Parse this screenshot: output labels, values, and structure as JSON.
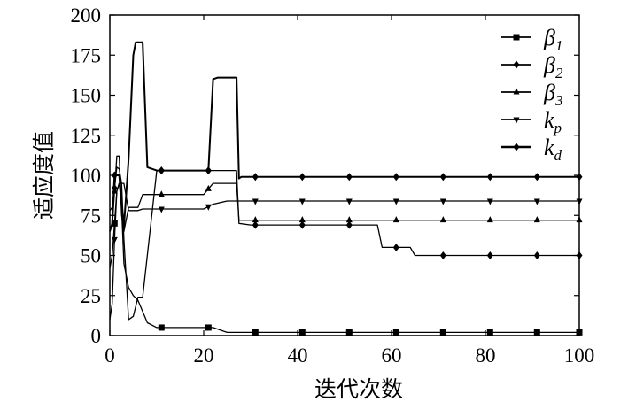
{
  "chart_data": {
    "type": "line",
    "title": "",
    "xlabel": "迭代次数",
    "ylabel": "适应度值",
    "xlim": [
      0,
      100
    ],
    "ylim": [
      0,
      200
    ],
    "xticks": [
      0,
      20,
      40,
      60,
      80,
      100
    ],
    "yticks": [
      0,
      25,
      50,
      75,
      100,
      125,
      150,
      175,
      200
    ],
    "grid": false,
    "legend_position": "top-right",
    "series": [
      {
        "name": "β1",
        "symbol": "β",
        "sub": "1",
        "marker": "square",
        "x": [
          0,
          0.5,
          1,
          1.5,
          2,
          2.5,
          3,
          4,
          5,
          6,
          7,
          8,
          10,
          15,
          20,
          22,
          25,
          30,
          40,
          50,
          60,
          70,
          80,
          90,
          100
        ],
        "y": [
          42,
          50,
          70,
          90,
          95,
          80,
          45,
          30,
          25,
          22,
          15,
          8,
          5,
          5,
          5,
          5,
          2,
          2,
          2,
          2,
          2,
          2,
          2,
          2,
          2
        ]
      },
      {
        "name": "β2",
        "symbol": "β",
        "sub": "2",
        "marker": "diamond",
        "x": [
          0,
          0.5,
          1,
          1.5,
          2,
          2.5,
          3,
          4,
          5,
          6,
          7,
          10,
          15,
          20,
          22,
          25,
          27,
          27.5,
          30,
          40,
          50,
          57,
          58,
          60,
          62,
          64,
          65,
          70,
          80,
          90,
          100
        ],
        "y": [
          78,
          80,
          92,
          105,
          104,
          95,
          60,
          10,
          12,
          24,
          24,
          103,
          103,
          103,
          103,
          103,
          103,
          70,
          69,
          69,
          69,
          69,
          55,
          55,
          55,
          55,
          50,
          50,
          50,
          50,
          50
        ]
      },
      {
        "name": "β3",
        "symbol": "β",
        "sub": "3",
        "marker": "triangle-up",
        "x": [
          0,
          0.5,
          1,
          1.5,
          2,
          2.5,
          3,
          4,
          5,
          6,
          7,
          10,
          15,
          20,
          22,
          25,
          27,
          27.5,
          30,
          40,
          50,
          60,
          70,
          80,
          90,
          100
        ],
        "y": [
          68,
          68,
          90,
          112,
          112,
          75,
          65,
          80,
          80,
          80,
          88,
          88,
          88,
          88,
          95,
          95,
          95,
          72,
          72,
          72,
          72,
          72,
          72,
          72,
          72,
          72
        ]
      },
      {
        "name": "kp",
        "symbol": "k",
        "sub": "p",
        "marker": "triangle-down",
        "x": [
          0,
          0.5,
          1,
          1.5,
          2,
          3,
          4,
          5,
          6,
          7,
          10,
          15,
          20,
          22,
          25,
          27,
          30,
          40,
          50,
          60,
          70,
          80,
          90,
          100
        ],
        "y": [
          10,
          20,
          60,
          90,
          95,
          95,
          78,
          78,
          78,
          79,
          79,
          79,
          79,
          82,
          84,
          84,
          84,
          84,
          84,
          84,
          84,
          84,
          84,
          84
        ]
      },
      {
        "name": "kd",
        "symbol": "k",
        "sub": "d",
        "marker": "diamond-filled",
        "x": [
          0,
          0.5,
          1,
          2,
          3,
          4,
          5,
          5.5,
          6,
          7,
          8,
          10,
          15,
          20,
          21,
          22,
          23,
          25,
          26,
          27,
          27.5,
          28,
          30,
          40,
          50,
          60,
          70,
          80,
          90,
          100
        ],
        "y": [
          65,
          70,
          100,
          100,
          68,
          110,
          175,
          183,
          183,
          183,
          105,
          103,
          103,
          103,
          103,
          160,
          161,
          161,
          161,
          161,
          98,
          99,
          99,
          99,
          99,
          99,
          99,
          99,
          99,
          99
        ]
      }
    ],
    "legend": [
      "β1",
      "β2",
      "β3",
      "kp",
      "kd"
    ]
  }
}
